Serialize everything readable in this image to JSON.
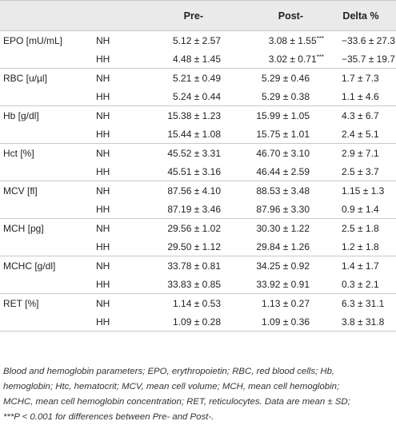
{
  "table": {
    "headers": [
      "",
      "",
      "Pre-",
      "Post-",
      "Delta %"
    ],
    "groups": [
      {
        "parameter": "EPO [mU/mL]",
        "rows": [
          {
            "condition": "NH",
            "pre": "5.12 ± 2.57",
            "post": "3.08 ± 1.55",
            "post_sig": "***",
            "delta": "−33.6 ± 27.3"
          },
          {
            "condition": "HH",
            "pre": "4.48 ± 1.45",
            "post": "3.02 ± 0.71",
            "post_sig": "***",
            "delta": "−35.7 ± 19.7"
          }
        ]
      },
      {
        "parameter": "RBC [u/µl]",
        "rows": [
          {
            "condition": "NH",
            "pre": "5.21 ± 0.49",
            "post": "5.29 ± 0.46",
            "post_sig": "",
            "delta": "1.7 ± 7.3"
          },
          {
            "condition": "HH",
            "pre": "5.24 ± 0.44",
            "post": "5.29 ± 0.38",
            "post_sig": "",
            "delta": "1.1 ± 4.6"
          }
        ]
      },
      {
        "parameter": "Hb [g/dl]",
        "rows": [
          {
            "condition": "NH",
            "pre": "15.38 ± 1.23",
            "post": "15.99 ± 1.05",
            "post_sig": "",
            "delta": "4.3 ± 6.7"
          },
          {
            "condition": "HH",
            "pre": "15.44 ± 1.08",
            "post": "15.75 ± 1.01",
            "post_sig": "",
            "delta": "2.4 ± 5.1"
          }
        ]
      },
      {
        "parameter": "Hct [%]",
        "rows": [
          {
            "condition": "NH",
            "pre": "45.52 ± 3.31",
            "post": "46.70 ± 3.10",
            "post_sig": "",
            "delta": "2.9 ± 7.1"
          },
          {
            "condition": "HH",
            "pre": "45.51 ± 3.16",
            "post": "46.44 ± 2.59",
            "post_sig": "",
            "delta": "2.5 ± 3.7"
          }
        ]
      },
      {
        "parameter": "MCV [fl]",
        "rows": [
          {
            "condition": "NH",
            "pre": "87.56 ± 4.10",
            "post": "88.53 ± 3.48",
            "post_sig": "",
            "delta": "1.15 ± 1.3"
          },
          {
            "condition": "HH",
            "pre": "87.19 ± 3.46",
            "post": "87.96 ± 3.30",
            "post_sig": "",
            "delta": "0.9 ± 1.4"
          }
        ]
      },
      {
        "parameter": "MCH [pg]",
        "rows": [
          {
            "condition": "NH",
            "pre": "29.56 ± 1.02",
            "post": "30.30 ± 1.22",
            "post_sig": "",
            "delta": "2.5 ± 1.8"
          },
          {
            "condition": "HH",
            "pre": "29.50 ± 1.12",
            "post": "29.84 ± 1.26",
            "post_sig": "",
            "delta": "1.2 ± 1.8"
          }
        ]
      },
      {
        "parameter": "MCHC [g/dl]",
        "rows": [
          {
            "condition": "NH",
            "pre": "33.78 ± 0.81",
            "post": "34.25 ± 0.92",
            "post_sig": "",
            "delta": "1.4 ± 1.7"
          },
          {
            "condition": "HH",
            "pre": "33.83 ± 0.85",
            "post": "33.92 ± 0.91",
            "post_sig": "",
            "delta": "0.3 ± 2.1"
          }
        ]
      },
      {
        "parameter": "RET [%]",
        "rows": [
          {
            "condition": "NH",
            "pre": "1.14 ± 0.53",
            "post": "1.13 ± 0.27",
            "post_sig": "",
            "delta": "6.3 ± 31.1"
          },
          {
            "condition": "HH",
            "pre": "1.09 ± 0.28",
            "post": "1.09 ± 0.36",
            "post_sig": "",
            "delta": "3.8 ± 31.8"
          }
        ]
      }
    ]
  },
  "caption": {
    "lines": [
      "Blood and hemoglobin parameters; EPO, erythropoietin; RBC, red blood cells; Hb,",
      "hemoglobin; Htc, hematocrit; MCV, mean cell volume; MCH, mean cell hemoglobin;",
      "MCHC, mean cell hemoglobin concentration; RET, reticulocytes. Data are mean ± SD;",
      "***P < 0.001 for differences between Pre- and Post-."
    ]
  }
}
